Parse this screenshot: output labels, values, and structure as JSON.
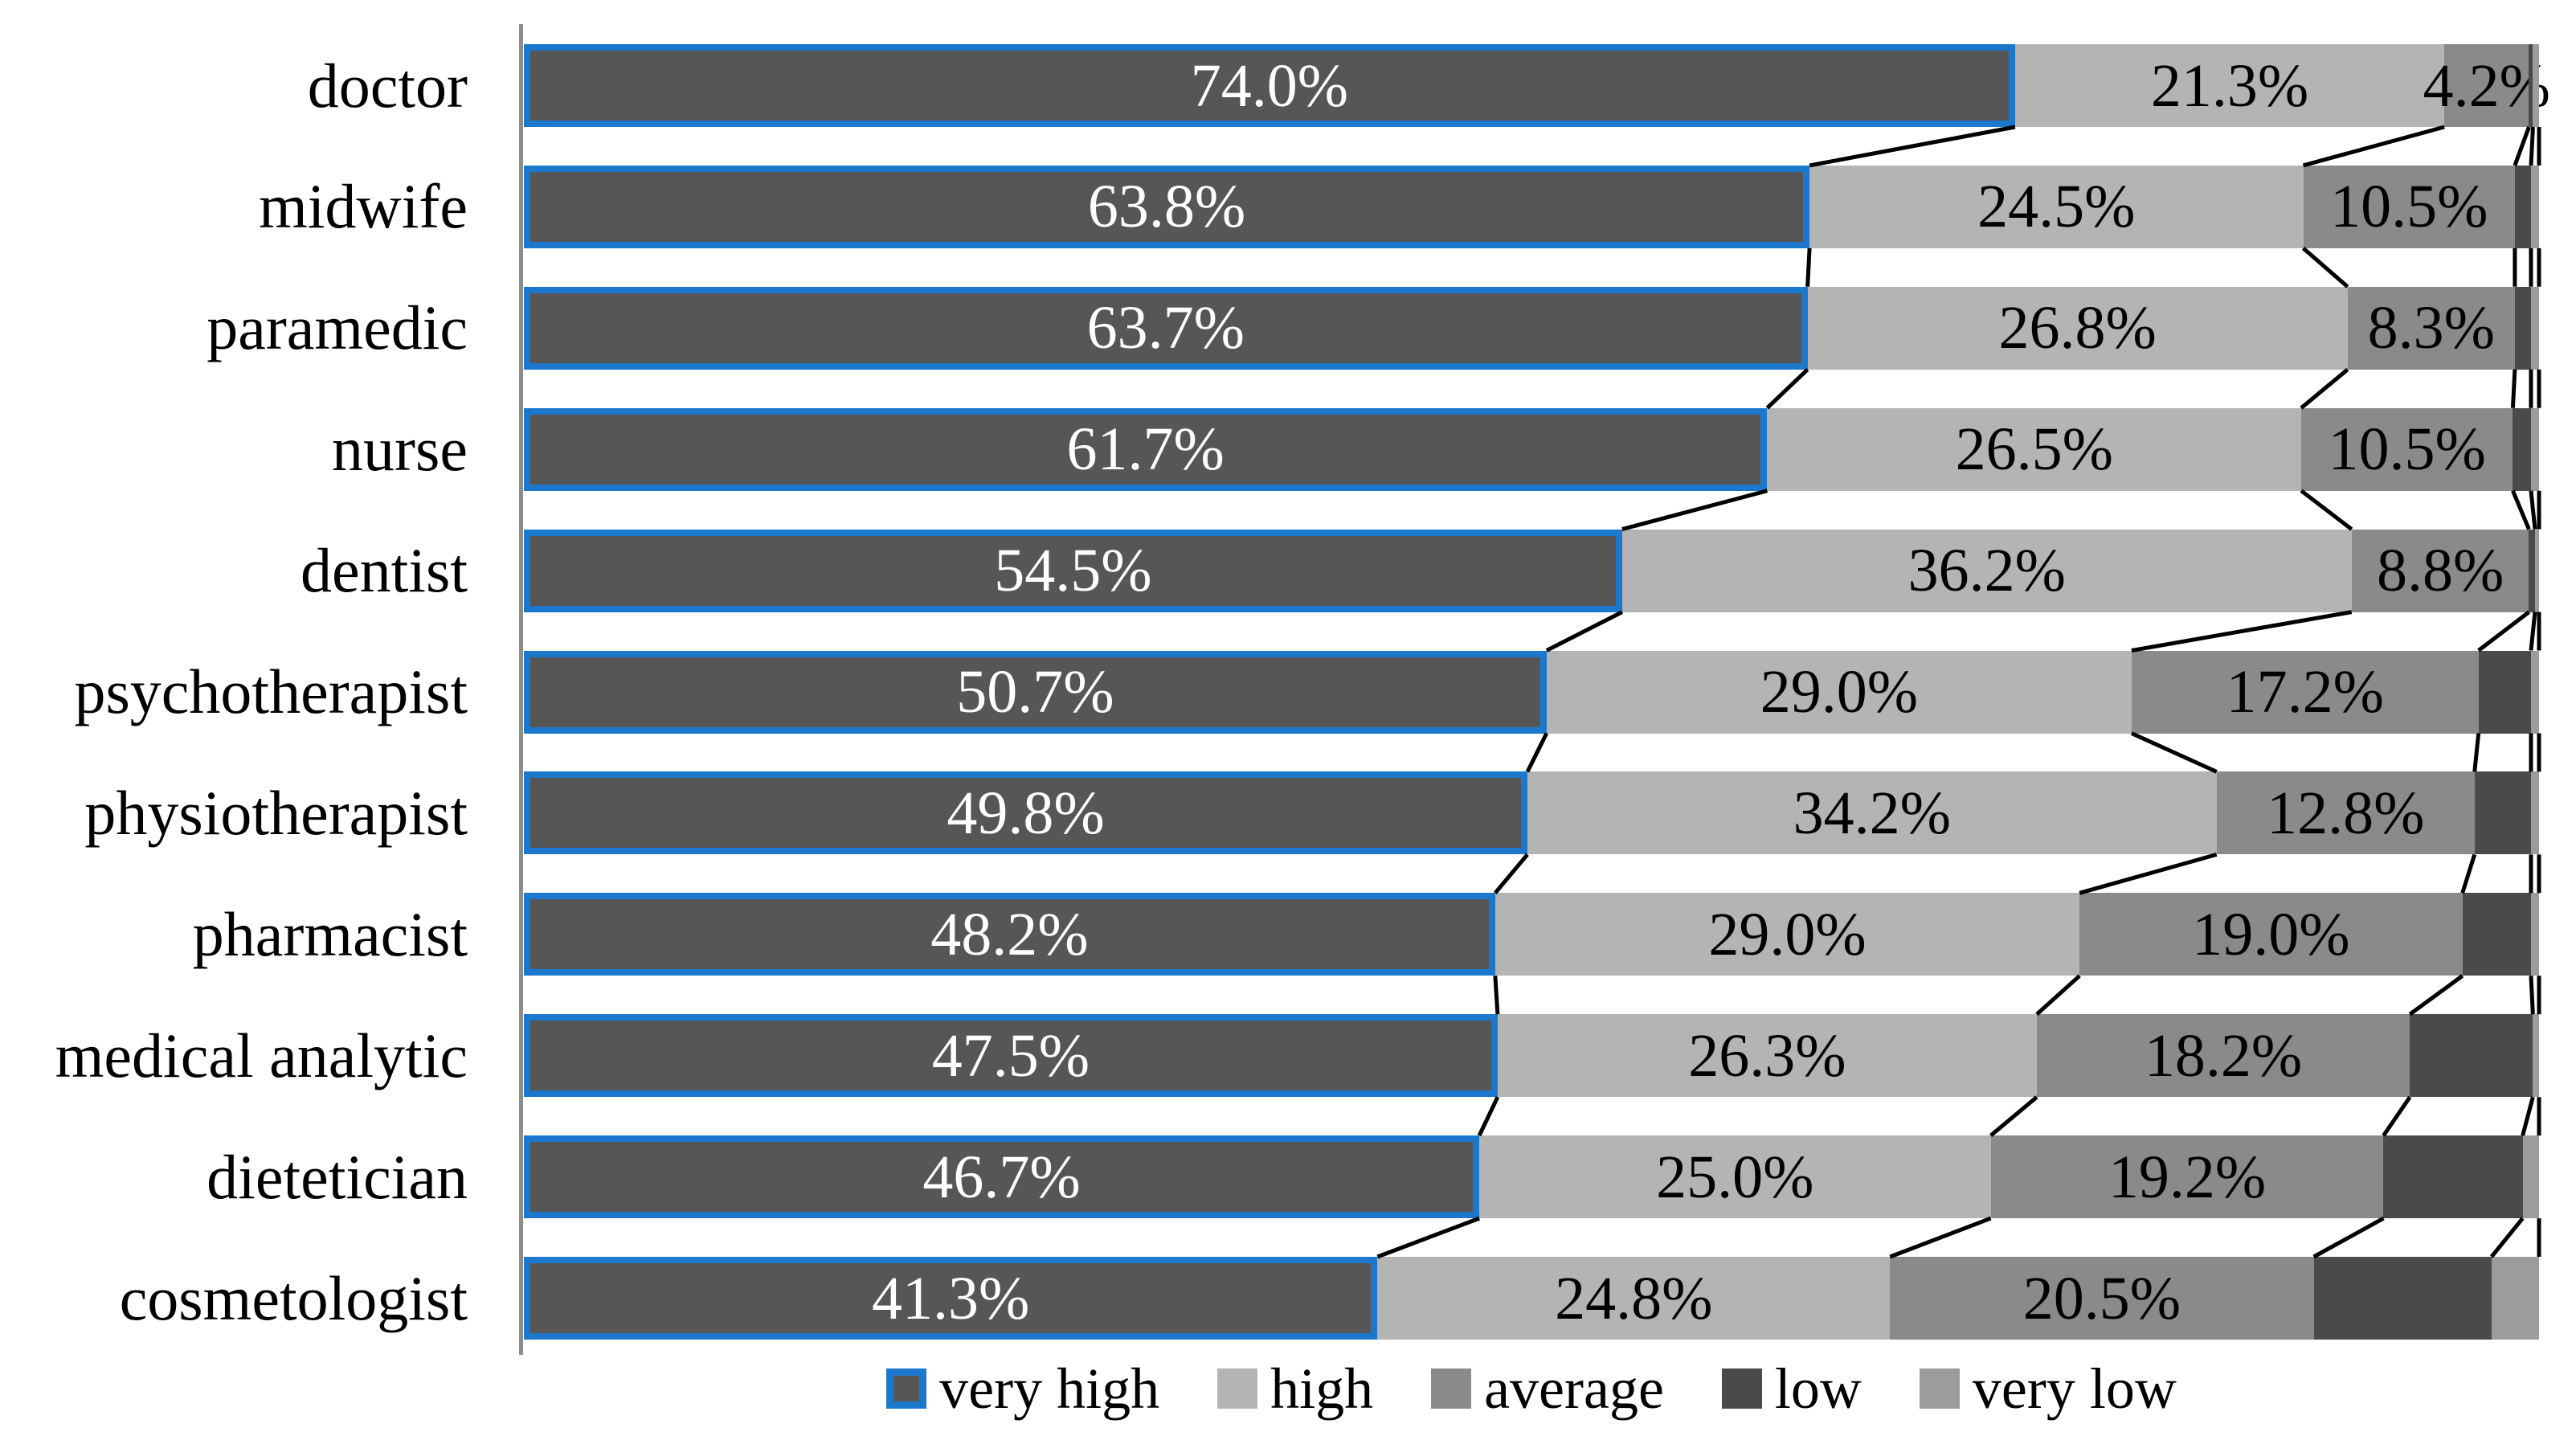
{
  "chart_data": {
    "type": "bar",
    "subtype": "horizontal-stacked-100",
    "background": "#FFFFFF",
    "axis_color": "#8C8C8C",
    "connector_line_color": "#000000",
    "categories": [
      "doctor",
      "midwife",
      "paramedic",
      "nurse",
      "dentist",
      "psychotherapist",
      "physiotherapist",
      "pharmacist",
      "medical analytic",
      "dietetician",
      "cosmetologist"
    ],
    "series": [
      {
        "name": "very high",
        "color": "#565656",
        "border_color": "#1B78CD",
        "label_color": "#FFFFFF",
        "values": [
          74.0,
          63.8,
          63.7,
          61.7,
          54.5,
          50.7,
          49.8,
          48.2,
          47.5,
          46.7,
          41.3
        ],
        "labels": [
          "74.0%",
          "63.8%",
          "63.7%",
          "61.7%",
          "54.5%",
          "50.7%",
          "49.8%",
          "48.2%",
          "47.5%",
          "46.7%",
          "41.3%"
        ]
      },
      {
        "name": "high",
        "color": "#B4B4B4",
        "border_color": "",
        "label_color": "#000000",
        "values": [
          21.3,
          24.5,
          26.8,
          26.5,
          36.2,
          29.0,
          34.2,
          29.0,
          26.3,
          25.0,
          24.8
        ],
        "labels": [
          "21.3%",
          "24.5%",
          "26.8%",
          "26.5%",
          "36.2%",
          "29.0%",
          "34.2%",
          "29.0%",
          "26.3%",
          "25.0%",
          "24.8%"
        ]
      },
      {
        "name": "average",
        "color": "#8A8A8A",
        "border_color": "",
        "label_color": "#000000",
        "values": [
          4.2,
          10.5,
          8.3,
          10.5,
          8.8,
          17.2,
          12.8,
          19.0,
          18.2,
          19.2,
          20.5
        ],
        "labels": [
          "4.2%",
          "10.5%",
          "8.3%",
          "10.5%",
          "8.8%",
          "17.2%",
          "12.8%",
          "19.0%",
          "18.2%",
          "19.2%",
          "20.5%"
        ]
      },
      {
        "name": "low",
        "color": "#4A4A4A",
        "border_color": "",
        "label_color": "#000000",
        "values": [
          0.2,
          0.8,
          0.8,
          0.9,
          0.3,
          2.6,
          2.8,
          3.4,
          6.0,
          6.8,
          8.6
        ],
        "labels": [
          "",
          "",
          "",
          "",
          "",
          "",
          "",
          "",
          "",
          "",
          ""
        ]
      },
      {
        "name": "very low",
        "color": "#9C9C9C",
        "border_color": "",
        "label_color": "#000000",
        "values": [
          0.3,
          0.4,
          0.4,
          0.4,
          0.2,
          0.4,
          0.4,
          0.4,
          0.3,
          0.8,
          2.3
        ],
        "labels": [
          "",
          "",
          "",
          "",
          "",
          "",
          "",
          "",
          "",
          "",
          ""
        ]
      }
    ],
    "legend": [
      "very high",
      "high",
      "average",
      "low",
      "very low"
    ],
    "legend_position": "bottom"
  }
}
